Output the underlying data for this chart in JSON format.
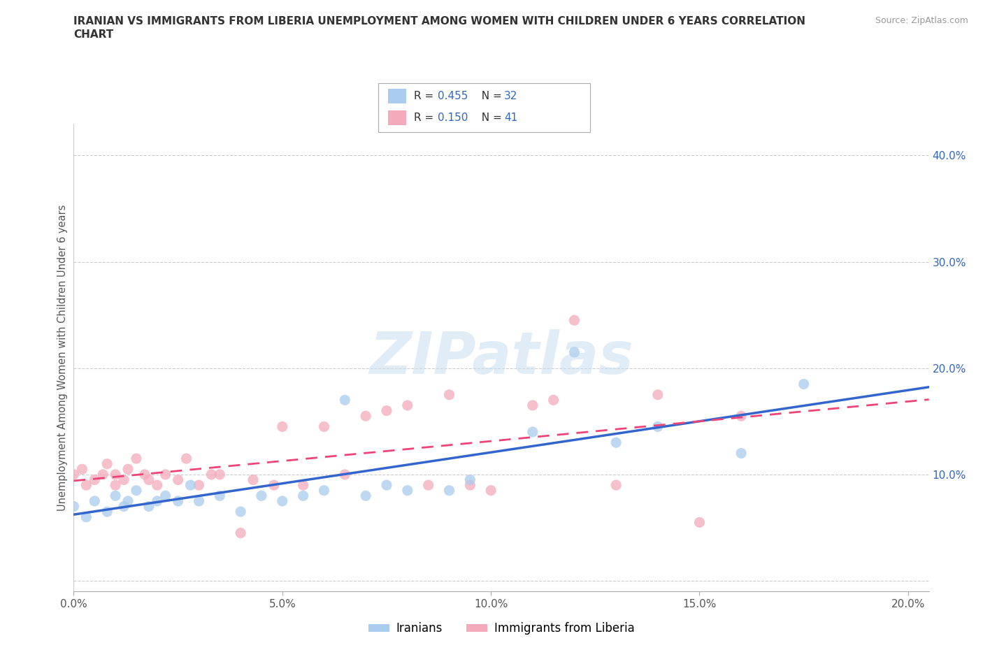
{
  "title_line1": "IRANIAN VS IMMIGRANTS FROM LIBERIA UNEMPLOYMENT AMONG WOMEN WITH CHILDREN UNDER 6 YEARS CORRELATION",
  "title_line2": "CHART",
  "source": "Source: ZipAtlas.com",
  "ylabel": "Unemployment Among Women with Children Under 6 years",
  "xlim": [
    0.0,
    0.205
  ],
  "ylim": [
    -0.01,
    0.43
  ],
  "xticks": [
    0.0,
    0.05,
    0.1,
    0.15,
    0.2
  ],
  "yticks": [
    0.0,
    0.1,
    0.2,
    0.3,
    0.4
  ],
  "xtick_labels": [
    "0.0%",
    "5.0%",
    "10.0%",
    "15.0%",
    "20.0%"
  ],
  "ytick_labels": [
    "",
    "10.0%",
    "20.0%",
    "30.0%",
    "40.0%"
  ],
  "iranians_color": "#aaccee",
  "liberia_color": "#f4aabb",
  "iranians_line_color": "#3366cc",
  "liberia_line_color": "#ee4477",
  "R_iranians": 0.455,
  "N_iranians": 32,
  "R_liberia": 0.15,
  "N_liberia": 41,
  "legend_iranians": "Iranians",
  "legend_liberia": "Immigrants from Liberia",
  "watermark": "ZIPatlas",
  "iranians_x": [
    0.0,
    0.003,
    0.005,
    0.008,
    0.01,
    0.012,
    0.013,
    0.015,
    0.018,
    0.02,
    0.022,
    0.025,
    0.028,
    0.03,
    0.035,
    0.04,
    0.045,
    0.05,
    0.055,
    0.06,
    0.065,
    0.07,
    0.075,
    0.08,
    0.09,
    0.095,
    0.11,
    0.12,
    0.13,
    0.14,
    0.16,
    0.175
  ],
  "iranians_y": [
    0.07,
    0.06,
    0.075,
    0.065,
    0.08,
    0.07,
    0.075,
    0.085,
    0.07,
    0.075,
    0.08,
    0.075,
    0.09,
    0.075,
    0.08,
    0.065,
    0.08,
    0.075,
    0.08,
    0.085,
    0.17,
    0.08,
    0.09,
    0.085,
    0.085,
    0.095,
    0.14,
    0.215,
    0.13,
    0.145,
    0.12,
    0.185
  ],
  "liberia_x": [
    0.0,
    0.002,
    0.003,
    0.005,
    0.007,
    0.008,
    0.01,
    0.01,
    0.012,
    0.013,
    0.015,
    0.017,
    0.018,
    0.02,
    0.022,
    0.025,
    0.027,
    0.03,
    0.033,
    0.035,
    0.04,
    0.043,
    0.048,
    0.05,
    0.055,
    0.06,
    0.065,
    0.07,
    0.075,
    0.08,
    0.085,
    0.09,
    0.095,
    0.1,
    0.11,
    0.115,
    0.12,
    0.13,
    0.14,
    0.15,
    0.16
  ],
  "liberia_y": [
    0.1,
    0.105,
    0.09,
    0.095,
    0.1,
    0.11,
    0.09,
    0.1,
    0.095,
    0.105,
    0.115,
    0.1,
    0.095,
    0.09,
    0.1,
    0.095,
    0.115,
    0.09,
    0.1,
    0.1,
    0.045,
    0.095,
    0.09,
    0.145,
    0.09,
    0.145,
    0.1,
    0.155,
    0.16,
    0.165,
    0.09,
    0.175,
    0.09,
    0.085,
    0.165,
    0.17,
    0.245,
    0.09,
    0.175,
    0.055,
    0.155
  ]
}
